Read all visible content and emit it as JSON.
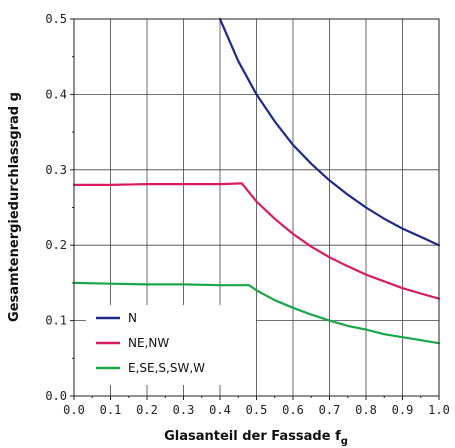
{
  "chart_data": {
    "type": "line",
    "xlabel": "Glasanteil der Fassade f",
    "xlabel_sub": "g",
    "ylabel": "Gesamtenergiedurchlassgrad g",
    "xlim": [
      0.0,
      1.0
    ],
    "ylim": [
      0.0,
      0.5
    ],
    "xticks": [
      "0.0",
      "0.1",
      "0.2",
      "0.3",
      "0.4",
      "0.5",
      "0.6",
      "0.7",
      "0.8",
      "0.9",
      "1.0"
    ],
    "yticks": [
      "0.0",
      "0.1",
      "0.2",
      "0.3",
      "0.4",
      "0.5"
    ],
    "grid": true,
    "legend_position": "bottom-left",
    "series": [
      {
        "name": "N",
        "color": "#1f2a8a",
        "x": [
          0.4,
          0.45,
          0.5,
          0.55,
          0.6,
          0.65,
          0.7,
          0.75,
          0.8,
          0.85,
          0.9,
          0.95,
          1.0
        ],
        "y": [
          0.5,
          0.444,
          0.4,
          0.364,
          0.333,
          0.308,
          0.286,
          0.267,
          0.25,
          0.235,
          0.222,
          0.211,
          0.2
        ]
      },
      {
        "name": "NE,NW",
        "color": "#d81b60",
        "x": [
          0.0,
          0.1,
          0.2,
          0.3,
          0.4,
          0.46,
          0.5,
          0.55,
          0.6,
          0.65,
          0.7,
          0.75,
          0.8,
          0.85,
          0.9,
          0.95,
          1.0
        ],
        "y": [
          0.28,
          0.28,
          0.281,
          0.281,
          0.281,
          0.282,
          0.258,
          0.235,
          0.215,
          0.198,
          0.184,
          0.172,
          0.161,
          0.152,
          0.143,
          0.136,
          0.129
        ]
      },
      {
        "name": "E,SE,S,SW,W",
        "color": "#1aa64a",
        "x": [
          0.0,
          0.1,
          0.2,
          0.3,
          0.4,
          0.48,
          0.5,
          0.55,
          0.6,
          0.65,
          0.7,
          0.75,
          0.8,
          0.85,
          0.9,
          0.95,
          1.0
        ],
        "y": [
          0.15,
          0.149,
          0.148,
          0.148,
          0.147,
          0.147,
          0.14,
          0.127,
          0.117,
          0.108,
          0.1,
          0.093,
          0.088,
          0.082,
          0.078,
          0.074,
          0.07
        ]
      }
    ]
  }
}
